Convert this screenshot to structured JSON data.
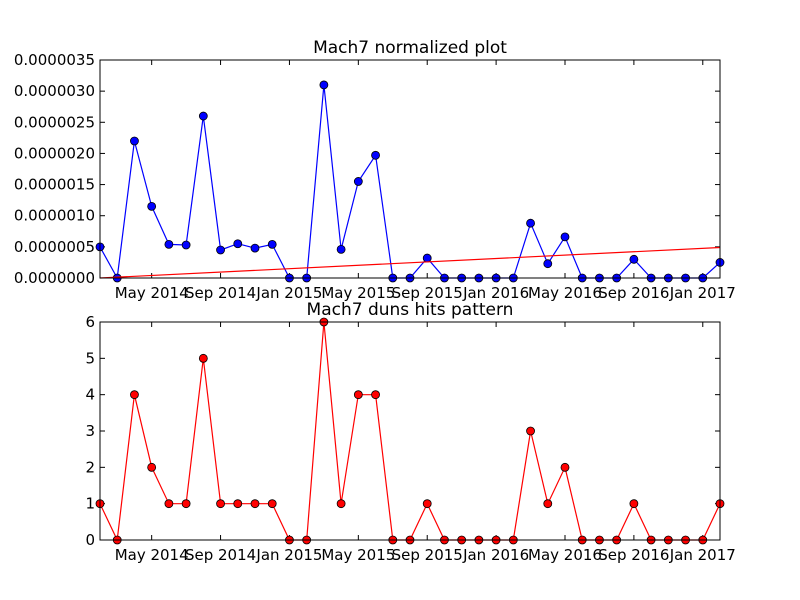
{
  "chart_data": [
    {
      "type": "line",
      "title": "Mach7 normalized plot",
      "xlabel": "",
      "ylabel": "",
      "x": [
        "2014-02",
        "2014-03",
        "2014-04",
        "2014-05",
        "2014-06",
        "2014-07",
        "2014-08",
        "2014-09",
        "2014-10",
        "2014-11",
        "2014-12",
        "2015-01",
        "2015-02",
        "2015-03",
        "2015-04",
        "2015-05",
        "2015-06",
        "2015-07",
        "2015-08",
        "2015-09",
        "2015-10",
        "2015-11",
        "2015-12",
        "2016-01",
        "2016-02",
        "2016-03",
        "2016-04",
        "2016-05",
        "2016-06",
        "2016-07",
        "2016-08",
        "2016-09",
        "2016-10",
        "2016-11",
        "2016-12",
        "2017-01",
        "2017-02"
      ],
      "xtick_labels": [
        "May 2014",
        "Sep 2014",
        "Jan 2015",
        "May 2015",
        "Sep 2015",
        "Jan 2016",
        "May 2016",
        "Sep 2016",
        "Jan 2017"
      ],
      "xtick_dates": [
        "2014-05",
        "2014-09",
        "2015-01",
        "2015-05",
        "2015-09",
        "2016-01",
        "2016-05",
        "2016-09",
        "2017-01"
      ],
      "ylim": [
        0,
        3.5e-06
      ],
      "ytick_labels": [
        "0.0000000",
        "0.0000005",
        "0.0000010",
        "0.0000015",
        "0.0000020",
        "0.0000025",
        "0.0000030",
        "0.0000035"
      ],
      "ytick_values": [
        0,
        5e-07,
        1e-06,
        1.5e-06,
        2e-06,
        2.5e-06,
        3e-06,
        3.5e-06
      ],
      "series": [
        {
          "color": "#0000ff",
          "marker": "circle",
          "values": [
            5e-07,
            0,
            2.2e-06,
            1.15e-06,
            5.4e-07,
            5.3e-07,
            2.6e-06,
            4.5e-07,
            5.5e-07,
            4.8e-07,
            5.4e-07,
            0,
            0,
            3.1e-06,
            4.6e-07,
            1.55e-06,
            1.97e-06,
            0,
            0,
            3.2e-07,
            0,
            0,
            0,
            0,
            0,
            8.8e-07,
            2.3e-07,
            6.6e-07,
            0,
            0,
            0,
            3e-07,
            0,
            0,
            0,
            0,
            2.5e-07
          ]
        },
        {
          "color": "#ff0000",
          "marker": "none",
          "trend_start": 0.0,
          "trend_end": 4.9e-07
        }
      ],
      "grid": false
    },
    {
      "type": "line",
      "title": "Mach7 duns hits pattern",
      "xlabel": "",
      "ylabel": "",
      "x": [
        "2014-02",
        "2014-03",
        "2014-04",
        "2014-05",
        "2014-06",
        "2014-07",
        "2014-08",
        "2014-09",
        "2014-10",
        "2014-11",
        "2014-12",
        "2015-01",
        "2015-02",
        "2015-03",
        "2015-04",
        "2015-05",
        "2015-06",
        "2015-07",
        "2015-08",
        "2015-09",
        "2015-10",
        "2015-11",
        "2015-12",
        "2016-01",
        "2016-02",
        "2016-03",
        "2016-04",
        "2016-05",
        "2016-06",
        "2016-07",
        "2016-08",
        "2016-09",
        "2016-10",
        "2016-11",
        "2016-12",
        "2017-01",
        "2017-02"
      ],
      "xtick_labels": [
        "May 2014",
        "Sep 2014",
        "Jan 2015",
        "May 2015",
        "Sep 2015",
        "Jan 2016",
        "May 2016",
        "Sep 2016",
        "Jan 2017"
      ],
      "xtick_dates": [
        "2014-05",
        "2014-09",
        "2015-01",
        "2015-05",
        "2015-09",
        "2016-01",
        "2016-05",
        "2016-09",
        "2017-01"
      ],
      "ylim": [
        0,
        6
      ],
      "ytick_labels": [
        "0",
        "1",
        "2",
        "3",
        "4",
        "5",
        "6"
      ],
      "ytick_values": [
        0,
        1,
        2,
        3,
        4,
        5,
        6
      ],
      "series": [
        {
          "color": "#ff0000",
          "marker": "circle",
          "values": [
            1,
            0,
            4,
            2,
            1,
            1,
            5,
            1,
            1,
            1,
            1,
            0,
            0,
            6,
            1,
            4,
            4,
            0,
            0,
            1,
            0,
            0,
            0,
            0,
            0,
            3,
            1,
            2,
            0,
            0,
            0,
            1,
            0,
            0,
            0,
            0,
            1
          ]
        }
      ],
      "grid": false
    }
  ]
}
